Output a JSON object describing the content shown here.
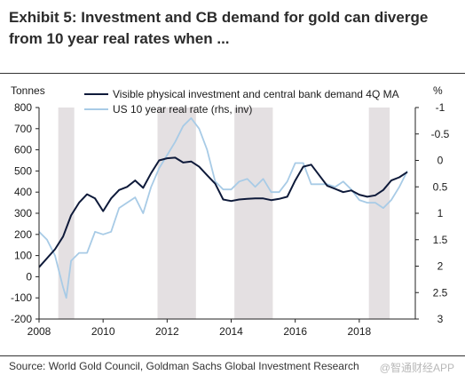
{
  "chart_data": {
    "type": "line",
    "title": "Exhibit 5: Investment and CB demand for gold can diverge from 10 year real rates when ...",
    "ylabel_left": "Tonnes",
    "ylabel_right": "%",
    "source": "Source: World Gold Council, Goldman Sachs Global Investment Research",
    "watermark": "@智通财经APP",
    "xlim": [
      2008,
      2019.75
    ],
    "ylim_left": [
      -200,
      800
    ],
    "ylim_right": [
      -1,
      3
    ],
    "right_axis_inverted": true,
    "x_ticks": [
      "2008",
      "2010",
      "2012",
      "2014",
      "2016",
      "2018"
    ],
    "y_ticks_left": [
      "-200",
      "-100",
      "0",
      "100",
      "200",
      "300",
      "400",
      "500",
      "600",
      "700",
      "800"
    ],
    "y_ticks_right": [
      "-1",
      "-0.5",
      "0",
      "0.5",
      "1",
      "1.5",
      "2",
      "2.5",
      "3"
    ],
    "legend_position": "top",
    "grid": false,
    "shaded_periods": [
      [
        2008.6,
        2009.1
      ],
      [
        2011.7,
        2012.9
      ],
      [
        2014.1,
        2015.3
      ],
      [
        2018.3,
        2018.95
      ]
    ],
    "series": [
      {
        "name": "Visible physical investment and central bank demand 4Q MA",
        "axis": "left",
        "color": "#0e1a3a",
        "x": [
          2008.0,
          2008.5,
          2008.75,
          2009.0,
          2009.25,
          2009.5,
          2009.75,
          2010.0,
          2010.25,
          2010.5,
          2010.75,
          2011.0,
          2011.25,
          2011.5,
          2011.75,
          2012.0,
          2012.25,
          2012.5,
          2012.75,
          2013.0,
          2013.25,
          2013.5,
          2013.75,
          2014.0,
          2014.25,
          2014.5,
          2014.75,
          2015.0,
          2015.25,
          2015.5,
          2015.75,
          2016.0,
          2016.25,
          2016.5,
          2016.75,
          2017.0,
          2017.25,
          2017.5,
          2017.75,
          2018.0,
          2018.25,
          2018.5,
          2018.75,
          2019.0,
          2019.25,
          2019.5
        ],
        "y": [
          45,
          130,
          190,
          290,
          350,
          390,
          370,
          310,
          370,
          410,
          425,
          455,
          420,
          490,
          550,
          560,
          563,
          540,
          545,
          520,
          480,
          440,
          365,
          358,
          365,
          368,
          370,
          370,
          362,
          368,
          378,
          455,
          520,
          530,
          480,
          430,
          415,
          400,
          408,
          388,
          378,
          385,
          410,
          455,
          470,
          495
        ]
      },
      {
        "name": "US 10 year real rate (rhs, inv)",
        "axis": "right",
        "color": "#a8cbe6",
        "x": [
          2008.0,
          2008.25,
          2008.5,
          2008.75,
          2008.85,
          2009.0,
          2009.25,
          2009.5,
          2009.75,
          2010.0,
          2010.25,
          2010.5,
          2010.75,
          2011.0,
          2011.25,
          2011.5,
          2011.75,
          2012.0,
          2012.25,
          2012.5,
          2012.75,
          2013.0,
          2013.25,
          2013.5,
          2013.75,
          2014.0,
          2014.25,
          2014.5,
          2014.75,
          2015.0,
          2015.25,
          2015.5,
          2015.75,
          2016.0,
          2016.25,
          2016.5,
          2016.75,
          2017.0,
          2017.25,
          2017.5,
          2017.75,
          2018.0,
          2018.25,
          2018.5,
          2018.75,
          2019.0,
          2019.25,
          2019.5
        ],
        "y": [
          1.35,
          1.5,
          1.8,
          2.4,
          2.6,
          1.9,
          1.75,
          1.75,
          1.35,
          1.4,
          1.35,
          0.9,
          0.8,
          0.7,
          1.0,
          0.5,
          0.15,
          -0.1,
          -0.35,
          -0.65,
          -0.8,
          -0.6,
          -0.2,
          0.4,
          0.55,
          0.55,
          0.4,
          0.35,
          0.5,
          0.35,
          0.6,
          0.6,
          0.4,
          0.05,
          0.05,
          0.45,
          0.45,
          0.45,
          0.5,
          0.4,
          0.55,
          0.75,
          0.8,
          0.8,
          0.9,
          0.75,
          0.5,
          0.2
        ]
      }
    ]
  }
}
